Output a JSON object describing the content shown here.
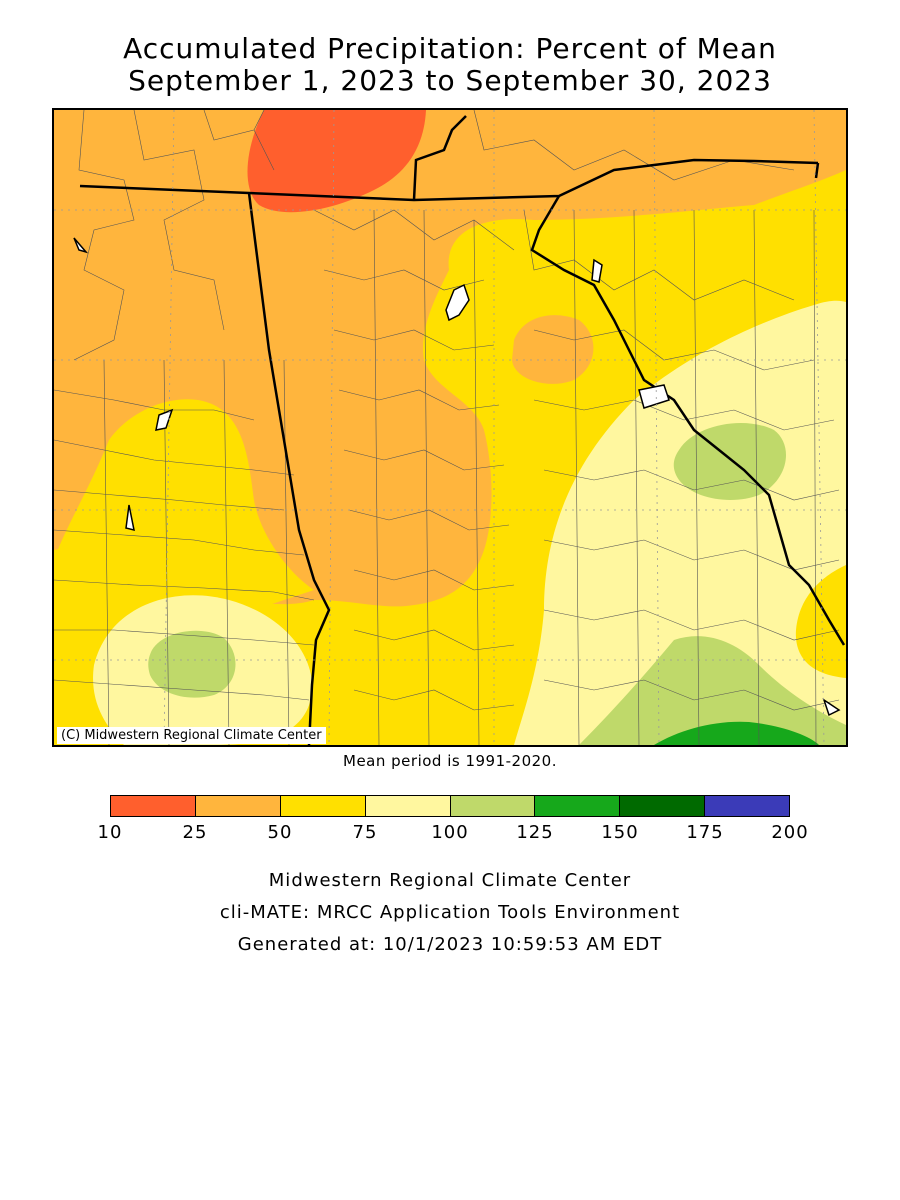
{
  "title": {
    "line1": "Accumulated Precipitation: Percent of Mean",
    "line2": "September 1, 2023 to September 30, 2023"
  },
  "map": {
    "copyright": "(C) Midwestern Regional Climate Center",
    "note": "Mean period is 1991-2020."
  },
  "legend": {
    "ticks": [
      "10",
      "25",
      "50",
      "75",
      "100",
      "125",
      "150",
      "175",
      "200"
    ],
    "colors": [
      "#ff5f2d",
      "#ffb53d",
      "#ffe000",
      "#fff79f",
      "#bfd96a",
      "#16a81b",
      "#006a00",
      "#3b3bb8"
    ]
  },
  "credits": {
    "line1": "Midwestern Regional Climate Center",
    "line2": "cli-MATE: MRCC Application Tools Environment",
    "line3": "Generated at: 10/1/2023 10:59:53 AM EDT"
  }
}
